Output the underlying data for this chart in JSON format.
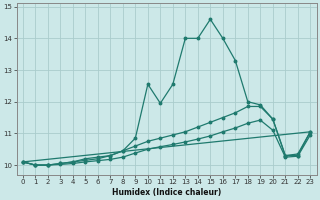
{
  "xlabel": "Humidex (Indice chaleur)",
  "bg_color": "#cce8e8",
  "grid_color": "#aacccc",
  "line_color": "#1f7a6e",
  "xlim": [
    -0.5,
    23.5
  ],
  "ylim": [
    9.7,
    15.1
  ],
  "yticks": [
    10,
    11,
    12,
    13,
    14,
    15
  ],
  "xticks": [
    0,
    1,
    2,
    3,
    4,
    5,
    6,
    7,
    8,
    9,
    10,
    11,
    12,
    13,
    14,
    15,
    16,
    17,
    18,
    19,
    20,
    21,
    22,
    23
  ],
  "series": [
    {
      "x": [
        0,
        1,
        2,
        3,
        4,
        5,
        6,
        7,
        8,
        9,
        10,
        11,
        12,
        13,
        14,
        15,
        16,
        17,
        18,
        19,
        20,
        21,
        22,
        23
      ],
      "y": [
        10.1,
        10.0,
        10.0,
        10.05,
        10.1,
        10.2,
        10.25,
        10.3,
        10.45,
        10.85,
        12.55,
        11.95,
        12.55,
        14.0,
        14.0,
        14.6,
        14.0,
        13.3,
        12.0,
        11.9,
        11.45,
        10.3,
        10.3,
        11.05
      ]
    },
    {
      "x": [
        0,
        1,
        2,
        3,
        4,
        5,
        6,
        7,
        8,
        9,
        10,
        11,
        12,
        13,
        14,
        15,
        16,
        17,
        18,
        19,
        20,
        21,
        22,
        23
      ],
      "y": [
        10.1,
        10.0,
        10.0,
        10.05,
        10.1,
        10.15,
        10.2,
        10.3,
        10.45,
        10.6,
        10.75,
        10.85,
        10.95,
        11.05,
        11.2,
        11.35,
        11.5,
        11.65,
        11.85,
        11.85,
        11.45,
        10.3,
        10.35,
        11.05
      ]
    },
    {
      "x": [
        0,
        1,
        2,
        3,
        4,
        5,
        6,
        7,
        8,
        9,
        10,
        11,
        12,
        13,
        14,
        15,
        16,
        17,
        18,
        19,
        20,
        21,
        22,
        23
      ],
      "y": [
        10.1,
        10.0,
        10.0,
        10.02,
        10.05,
        10.1,
        10.14,
        10.18,
        10.25,
        10.38,
        10.5,
        10.58,
        10.65,
        10.73,
        10.82,
        10.92,
        11.05,
        11.17,
        11.32,
        11.42,
        11.1,
        10.25,
        10.28,
        10.95
      ]
    },
    {
      "x": [
        0,
        23
      ],
      "y": [
        10.1,
        11.05
      ]
    }
  ]
}
